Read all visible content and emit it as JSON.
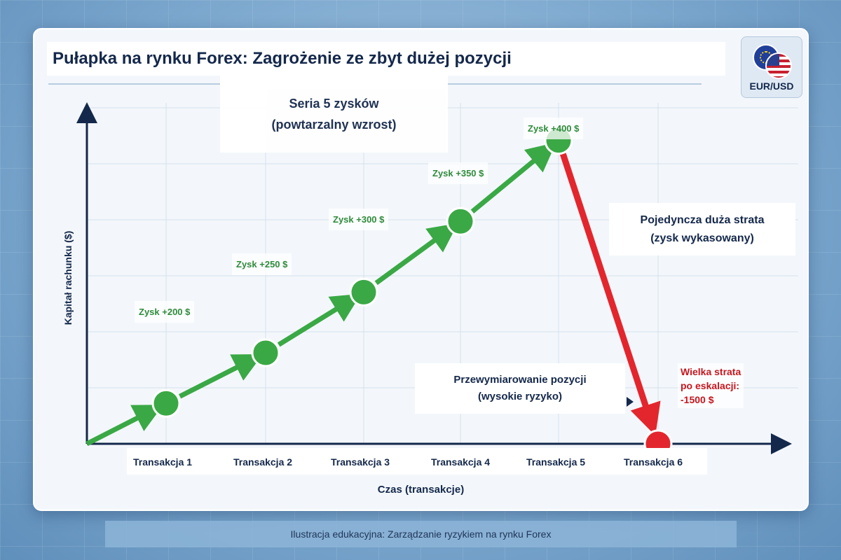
{
  "title": "Pułapka na rynku Forex: Zagrożenie ze zbyt dużej pozycji",
  "badge": {
    "label": "EUR/USD",
    "icons": [
      "eu-flag-icon",
      "us-flag-icon"
    ]
  },
  "annotations": {
    "series": [
      "Seria 5 zysków",
      "(powtarzalny wzrost)"
    ],
    "loss": [
      "Pojedyncza duża strata",
      "(zysk wykasowany)"
    ],
    "oversize": [
      "Przewymiarowanie pozycji",
      "(wysokie ryzyko)"
    ],
    "big_loss": [
      "Wielka strata",
      "po eskalacji:",
      "-1500 $"
    ]
  },
  "footer": "Ilustracja edukacyjna: Zarządzanie ryzykiem na rynku Forex",
  "colors": {
    "gain": "#3aa845",
    "loss": "#e3262d",
    "axis": "#14284b",
    "gain_text": "#2e8b3a",
    "loss_text": "#c7161d"
  },
  "chart_data": {
    "type": "line",
    "xlabel": "Czas (transakcje)",
    "ylabel": "Kapitał rachunku ($)",
    "categories": [
      "Transakcja 1",
      "Transakcja 2",
      "Transakcja 3",
      "Transakcja 4",
      "Transakcja 5",
      "Transakcja 6"
    ],
    "point_labels": [
      "Zysk +200 $",
      "Zysk +250 $",
      "Zysk +300 $",
      "Zysk +350 $",
      "Zysk +400 $",
      ""
    ],
    "changes": [
      200,
      250,
      300,
      350,
      400,
      -1500
    ],
    "start_equity": 0,
    "equity": [
      200,
      450,
      750,
      1100,
      1500,
      0
    ],
    "ylim": [
      0,
      1800
    ],
    "grid": true,
    "legend": "none"
  }
}
